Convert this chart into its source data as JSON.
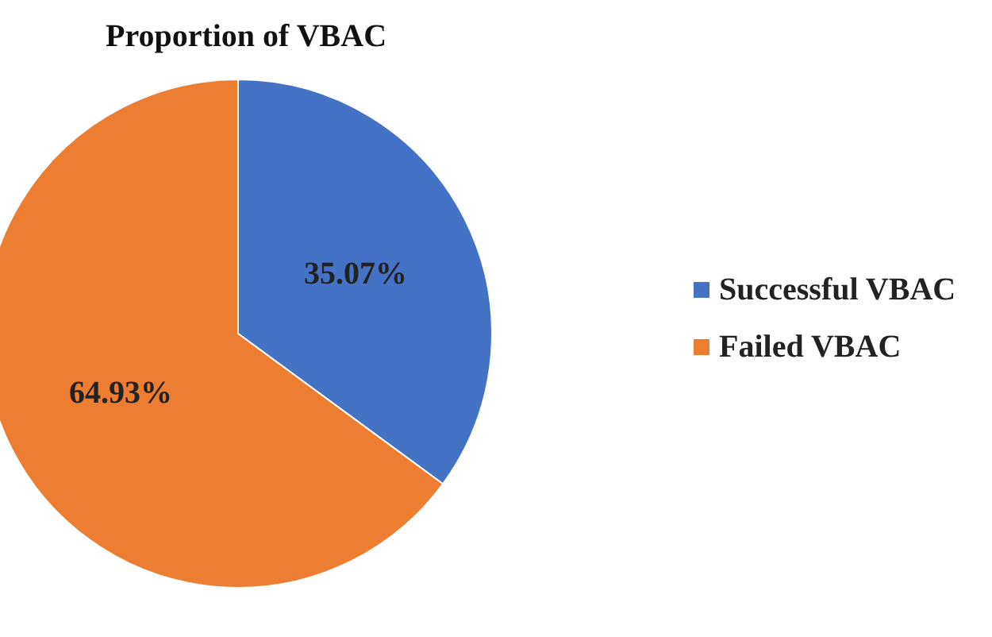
{
  "chart_data": {
    "type": "pie",
    "title": "Proportion of VBAC",
    "categories": [
      "Successful VBAC",
      "Failed VBAC"
    ],
    "values": [
      35.07,
      64.93
    ],
    "colors": [
      "#4472c4",
      "#ed7d31"
    ],
    "value_labels": [
      "35.07%",
      "64.93%"
    ],
    "legend": "right"
  }
}
